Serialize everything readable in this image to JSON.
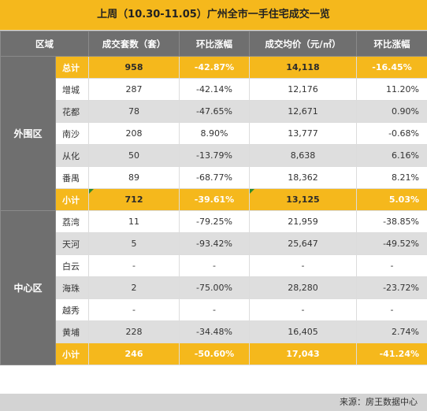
{
  "title": "上周（10.30-11.05）广州全市一手住宅成交一览",
  "headers": [
    "区域",
    "成交套数（套）",
    "环比涨幅",
    "成交均价（元/㎡）",
    "环比涨幅"
  ],
  "outer": {
    "region": "外围区",
    "rows": [
      {
        "district": "总计",
        "units": "958",
        "units_change": "-42.87%",
        "price": "14,118",
        "price_change": "-16.45%"
      },
      {
        "district": "增城",
        "units": "287",
        "units_change": "-42.14%",
        "price": "12,176",
        "price_change": "11.20%"
      },
      {
        "district": "花都",
        "units": "78",
        "units_change": "-47.65%",
        "price": "12,671",
        "price_change": "0.90%"
      },
      {
        "district": "南沙",
        "units": "208",
        "units_change": "8.90%",
        "price": "13,777",
        "price_change": "-0.68%"
      },
      {
        "district": "从化",
        "units": "50",
        "units_change": "-13.79%",
        "price": "8,638",
        "price_change": "6.16%"
      },
      {
        "district": "番禺",
        "units": "89",
        "units_change": "-68.77%",
        "price": "18,362",
        "price_change": "8.21%"
      },
      {
        "district": "小计",
        "units": "712",
        "units_change": "-39.61%",
        "price": "13,125",
        "price_change": "5.03%"
      }
    ]
  },
  "central": {
    "region": "中心区",
    "rows": [
      {
        "district": "荔湾",
        "units": "11",
        "units_change": "-79.25%",
        "price": "21,959",
        "price_change": "-38.85%"
      },
      {
        "district": "天河",
        "units": "5",
        "units_change": "-93.42%",
        "price": "25,647",
        "price_change": "-49.52%"
      },
      {
        "district": "白云",
        "units": "-",
        "units_change": "-",
        "price": "-",
        "price_change": "-"
      },
      {
        "district": "海珠",
        "units": "2",
        "units_change": "-75.00%",
        "price": "28,280",
        "price_change": "-23.72%"
      },
      {
        "district": "越秀",
        "units": "-",
        "units_change": "-",
        "price": "-",
        "price_change": "-"
      },
      {
        "district": "黄埔",
        "units": "228",
        "units_change": "-34.48%",
        "price": "16,405",
        "price_change": "2.74%"
      },
      {
        "district": "小计",
        "units": "246",
        "units_change": "-50.60%",
        "price": "17,043",
        "price_change": "-41.24%"
      }
    ]
  },
  "source": "来源：房王数据中心",
  "colors": {
    "header": "#6f6f6f",
    "highlight": "#f5b81c",
    "stripe": "#dedede"
  }
}
